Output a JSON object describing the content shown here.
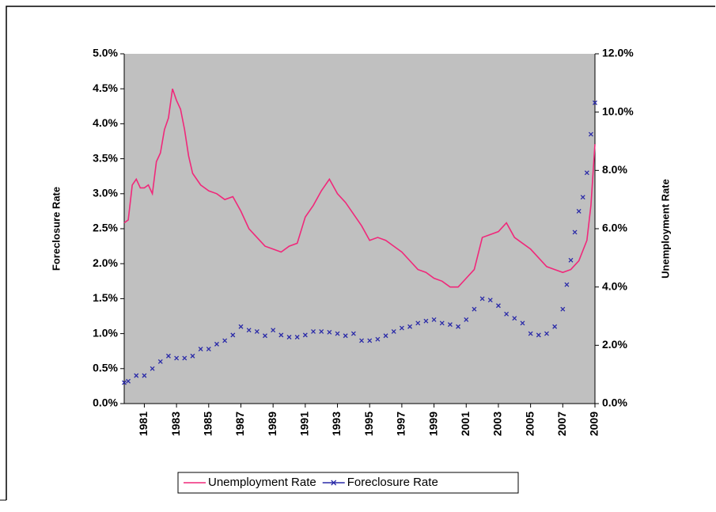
{
  "chart_data": {
    "type": "line",
    "y_label": "Foreclosure Rate",
    "y2_label": "Unemployment Rate",
    "xlim": [
      1979.75,
      2009
    ],
    "xticks": [
      1981,
      1983,
      1985,
      1987,
      1989,
      1991,
      1993,
      1995,
      1997,
      1999,
      2001,
      2003,
      2005,
      2007,
      2009
    ],
    "ylim": [
      0,
      5
    ],
    "yticks": [
      {
        "value": 0,
        "label": "0.0%"
      },
      {
        "value": 0.5,
        "label": "0.5%"
      },
      {
        "value": 1,
        "label": "1.0%"
      },
      {
        "value": 1.5,
        "label": "1.5%"
      },
      {
        "value": 2,
        "label": "2.0%"
      },
      {
        "value": 2.5,
        "label": "2.5%"
      },
      {
        "value": 3,
        "label": "3.0%"
      },
      {
        "value": 3.5,
        "label": "3.5%"
      },
      {
        "value": 4,
        "label": "4.0%"
      },
      {
        "value": 4.5,
        "label": "4.5%"
      },
      {
        "value": 5,
        "label": "5.0%"
      }
    ],
    "y2lim": [
      0,
      12
    ],
    "y2ticks": [
      {
        "value": 0,
        "label": "0.0%"
      },
      {
        "value": 2,
        "label": "2.0%"
      },
      {
        "value": 4,
        "label": "4.0%"
      },
      {
        "value": 6,
        "label": "6.0%"
      },
      {
        "value": 8,
        "label": "8.0%"
      },
      {
        "value": 10,
        "label": "10.0%"
      },
      {
        "value": 12,
        "label": "12.0%"
      }
    ],
    "series": [
      {
        "name": "Unemployment Rate",
        "color": "#f0287a",
        "axis": "y2",
        "marker": "none",
        "x": [
          1979.75,
          1980.0,
          1980.25,
          1980.5,
          1980.75,
          1981.0,
          1981.25,
          1981.5,
          1981.75,
          1982.0,
          1982.25,
          1982.5,
          1982.75,
          1983.0,
          1983.25,
          1983.5,
          1983.75,
          1984.0,
          1984.5,
          1985.0,
          1985.5,
          1986.0,
          1986.5,
          1987.0,
          1987.5,
          1988.0,
          1988.5,
          1989.0,
          1989.5,
          1990.0,
          1990.5,
          1991.0,
          1991.5,
          1992.0,
          1992.5,
          1993.0,
          1993.5,
          1994.0,
          1994.5,
          1995.0,
          1995.5,
          1996.0,
          1996.5,
          1997.0,
          1997.5,
          1998.0,
          1998.5,
          1999.0,
          1999.5,
          2000.0,
          2000.5,
          2001.0,
          2001.5,
          2002.0,
          2002.5,
          2003.0,
          2003.5,
          2004.0,
          2004.5,
          2005.0,
          2005.5,
          2006.0,
          2006.5,
          2007.0,
          2007.5,
          2008.0,
          2008.5,
          2008.75,
          2009.0
        ],
        "values": [
          6.2,
          6.3,
          7.5,
          7.7,
          7.4,
          7.4,
          7.5,
          7.2,
          8.3,
          8.6,
          9.4,
          9.8,
          10.8,
          10.4,
          10.1,
          9.4,
          8.5,
          7.9,
          7.5,
          7.3,
          7.2,
          7.0,
          7.1,
          6.6,
          6.0,
          5.7,
          5.4,
          5.3,
          5.2,
          5.4,
          5.5,
          6.4,
          6.8,
          7.3,
          7.7,
          7.2,
          6.9,
          6.5,
          6.1,
          5.6,
          5.7,
          5.6,
          5.4,
          5.2,
          4.9,
          4.6,
          4.5,
          4.3,
          4.2,
          4.0,
          4.0,
          4.3,
          4.6,
          5.7,
          5.8,
          5.9,
          6.2,
          5.7,
          5.5,
          5.3,
          5.0,
          4.7,
          4.6,
          4.5,
          4.6,
          4.9,
          5.6,
          6.8,
          8.9
        ]
      },
      {
        "name": "Foreclosure Rate",
        "color": "#2a2aa8",
        "axis": "y",
        "marker": "x",
        "x": [
          1979.75,
          1980.0,
          1980.5,
          1981.0,
          1981.5,
          1982.0,
          1982.5,
          1983.0,
          1983.5,
          1984.0,
          1984.5,
          1985.0,
          1985.5,
          1986.0,
          1986.5,
          1987.0,
          1987.5,
          1988.0,
          1988.5,
          1989.0,
          1989.5,
          1990.0,
          1990.5,
          1991.0,
          1991.5,
          1992.0,
          1992.5,
          1993.0,
          1993.5,
          1994.0,
          1994.5,
          1995.0,
          1995.5,
          1996.0,
          1996.5,
          1997.0,
          1997.5,
          1998.0,
          1998.5,
          1999.0,
          1999.5,
          2000.0,
          2000.5,
          2001.0,
          2001.5,
          2002.0,
          2002.5,
          2003.0,
          2003.5,
          2004.0,
          2004.5,
          2005.0,
          2005.5,
          2006.0,
          2006.5,
          2007.0,
          2007.25,
          2007.5,
          2007.75,
          2008.0,
          2008.25,
          2008.5,
          2008.75,
          2009.0
        ],
        "values": [
          0.3,
          0.32,
          0.4,
          0.4,
          0.5,
          0.6,
          0.68,
          0.65,
          0.65,
          0.68,
          0.78,
          0.78,
          0.85,
          0.9,
          0.98,
          1.1,
          1.05,
          1.03,
          0.97,
          1.05,
          0.98,
          0.95,
          0.95,
          0.98,
          1.03,
          1.03,
          1.02,
          1.0,
          0.97,
          1.0,
          0.9,
          0.9,
          0.92,
          0.97,
          1.03,
          1.08,
          1.1,
          1.15,
          1.18,
          1.2,
          1.15,
          1.13,
          1.1,
          1.2,
          1.35,
          1.5,
          1.48,
          1.4,
          1.28,
          1.22,
          1.15,
          1.0,
          0.98,
          1.0,
          1.1,
          1.35,
          1.7,
          2.05,
          2.45,
          2.75,
          2.95,
          3.3,
          3.85,
          4.3
        ]
      }
    ]
  }
}
